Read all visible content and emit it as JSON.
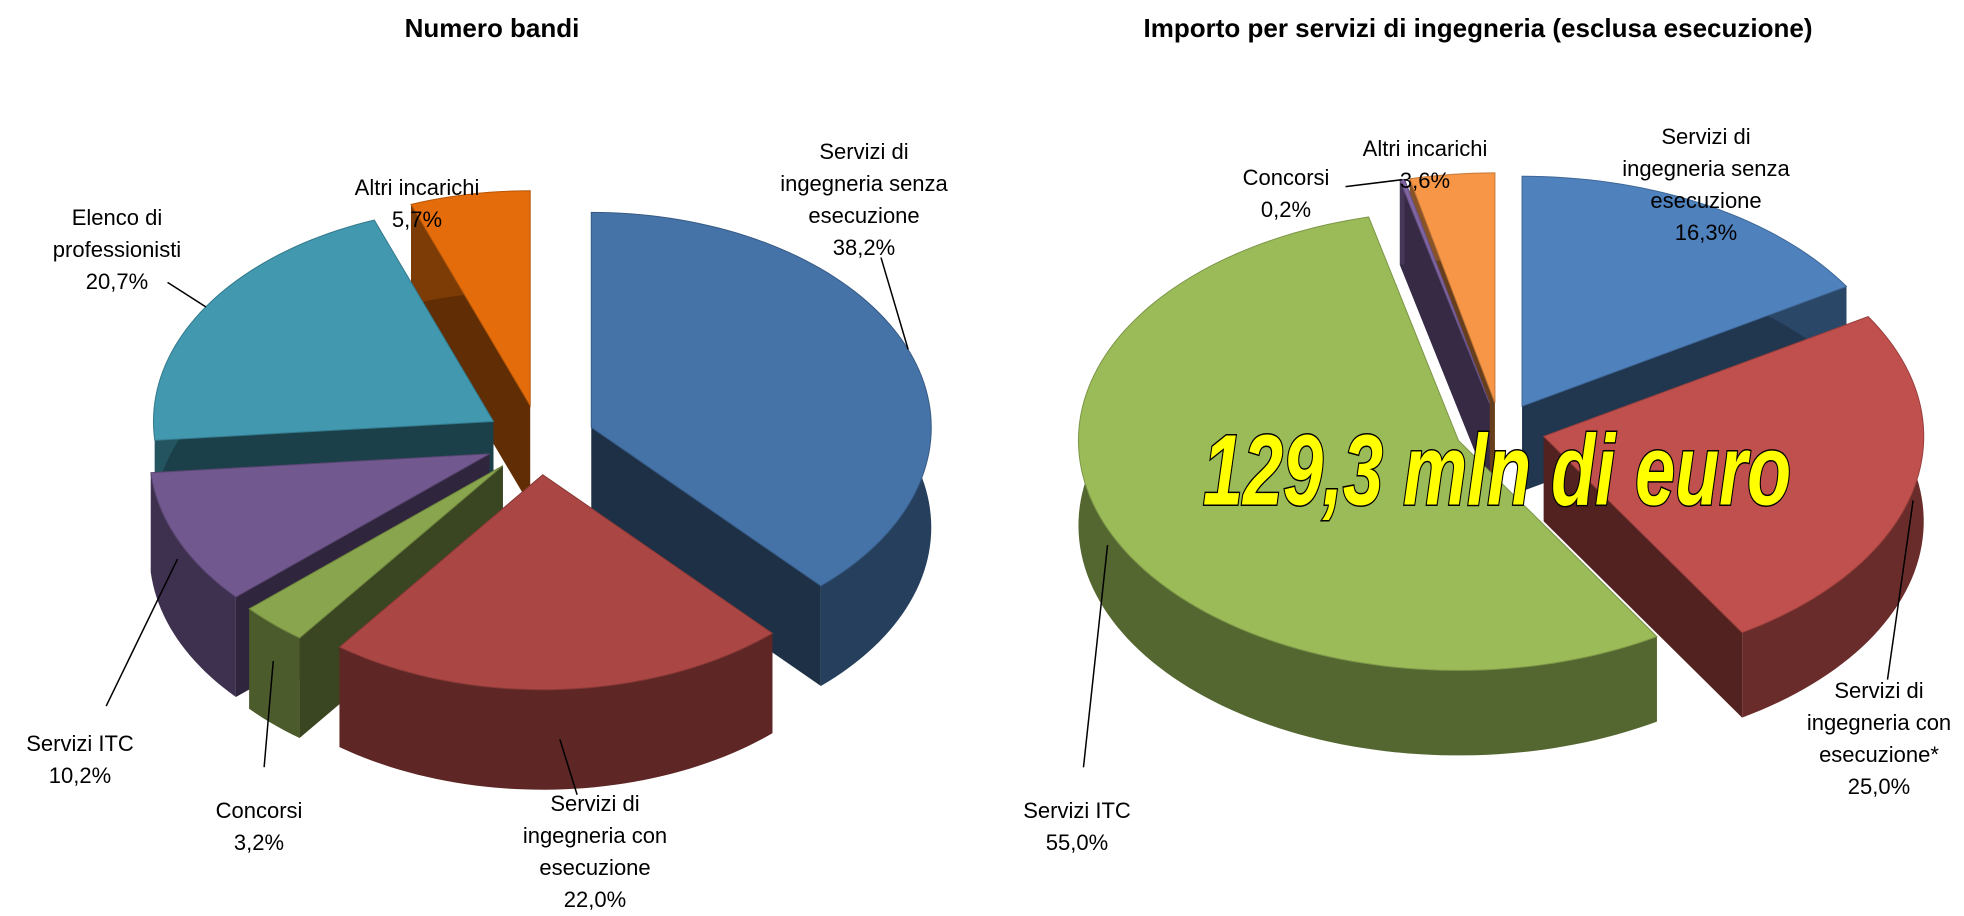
{
  "chart_data": [
    {
      "type": "pie",
      "title": "Numero bandi",
      "categories": [
        "Servizi di ingegneria senza esecuzione",
        "Servizi di ingegneria con esecuzione",
        "Concorsi",
        "Servizi ITC",
        "Elenco di professionisti",
        "Altri incarichi"
      ],
      "values": [
        38.2,
        22.0,
        3.2,
        10.2,
        20.7,
        5.7
      ],
      "value_labels": [
        "38,2%",
        "22,0%",
        "3,2%",
        "10,2%",
        "20,7%",
        "5,7%"
      ],
      "colors": [
        "#4572a7",
        "#aa4643",
        "#89a54e",
        "#71588f",
        "#4198af",
        "#e46c0a"
      ]
    },
    {
      "type": "pie",
      "title": "Importo per servizi di ingegneria (esclusa esecuzione)",
      "categories": [
        "Servizi di ingegneria senza esecuzione",
        "Servizi di ingegneria con esecuzione*",
        "Servizi ITC",
        "Concorsi",
        "Altri incarichi"
      ],
      "values": [
        16.3,
        25.0,
        55.0,
        0.2,
        3.6
      ],
      "value_labels": [
        "16,3%",
        "25,0%",
        "55,0%",
        "0,2%",
        "3,6%"
      ],
      "colors": [
        "#4f81bd",
        "#c0504d",
        "#9bbb59",
        "#8064a2",
        "#f79646"
      ],
      "annotation": "129,3 mln di euro"
    }
  ]
}
